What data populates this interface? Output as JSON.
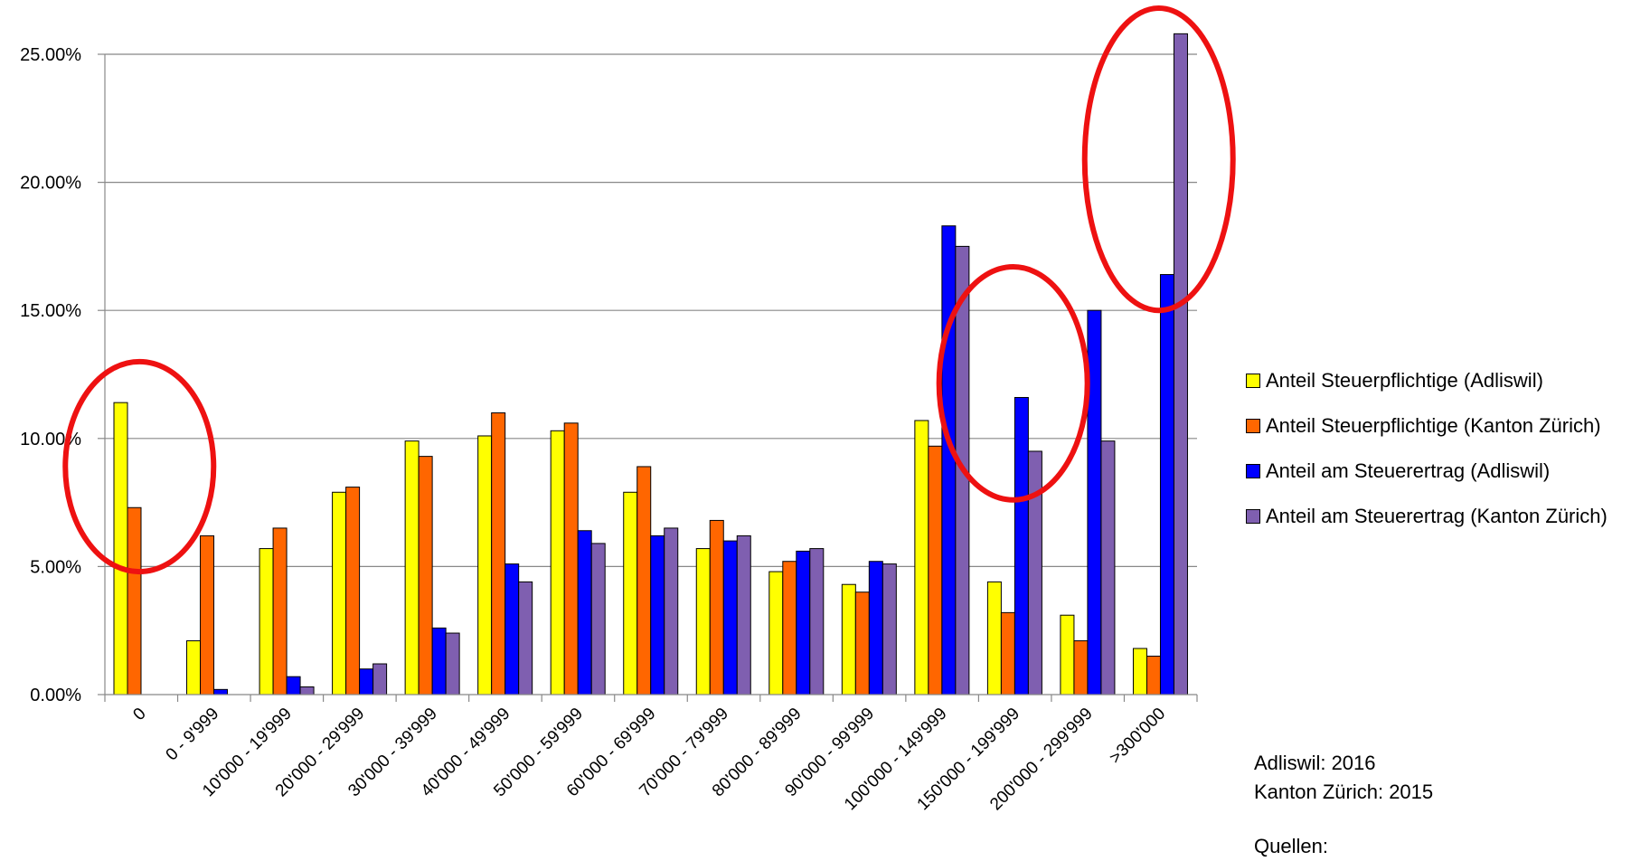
{
  "chart_data": {
    "type": "bar",
    "title": "",
    "xlabel": "",
    "ylabel": "",
    "ylim": [
      0,
      25
    ],
    "y_tick_labels": [
      "0.00%",
      "5.00%",
      "10.00%",
      "15.00%",
      "20.00%",
      "25.00%"
    ],
    "y_tick_values": [
      0,
      5,
      10,
      15,
      20,
      25
    ],
    "grid": "horizontal",
    "legend_position": "right",
    "categories": [
      "0",
      "0 - 9'999",
      "10'000 - 19'999",
      "20'000 - 29'999",
      "30'000 - 39'999",
      "40'000 - 49'999",
      "50'000 - 59'999",
      "60'000 - 69'999",
      "70'000 - 79'999",
      "80'000 - 89'999",
      "90'000 - 99'999",
      "100'000 - 149'999",
      "150'000 - 199'999",
      "200'000 - 299'999",
      ">300'000"
    ],
    "series": [
      {
        "name": "Anteil Steuerpflichtige (Adliswil)",
        "color": "#ffff00",
        "values": [
          11.4,
          2.1,
          5.7,
          7.9,
          9.9,
          10.1,
          10.3,
          7.9,
          5.7,
          4.8,
          4.3,
          10.7,
          4.4,
          3.1,
          1.8
        ]
      },
      {
        "name": "Anteil Steuerpflichtige (Kanton Zürich)",
        "color": "#ff6600",
        "values": [
          7.3,
          6.2,
          6.5,
          8.1,
          9.3,
          11.0,
          10.6,
          8.9,
          6.8,
          5.2,
          4.0,
          9.7,
          3.2,
          2.1,
          1.5
        ]
      },
      {
        "name": "Anteil am Steuerertrag (Adliswil)",
        "color": "#0000ff",
        "values": [
          0,
          0.2,
          0.7,
          1.0,
          2.6,
          5.1,
          6.4,
          6.2,
          6.0,
          5.6,
          5.2,
          18.3,
          11.6,
          15.0,
          16.4
        ]
      },
      {
        "name": "Anteil am Steuerertrag (Kanton Zürich)",
        "color": "#7f5fb0",
        "values": [
          0,
          0,
          0.3,
          1.2,
          2.4,
          4.4,
          5.9,
          6.5,
          6.2,
          5.7,
          5.1,
          17.5,
          9.5,
          9.9,
          25.8
        ]
      }
    ],
    "highlight_color": "#ee1111",
    "highlights": [
      {
        "category": "0",
        "y_range": [
          4.8,
          13.0
        ]
      },
      {
        "category": "150'000 - 199'999",
        "y_range": [
          7.6,
          16.7
        ]
      },
      {
        "category": ">300'000",
        "y_range": [
          15.0,
          26.8
        ]
      }
    ]
  },
  "notes": [
    "Adliswil: 2016",
    "Kanton Zürich: 2015",
    "Quellen:"
  ]
}
